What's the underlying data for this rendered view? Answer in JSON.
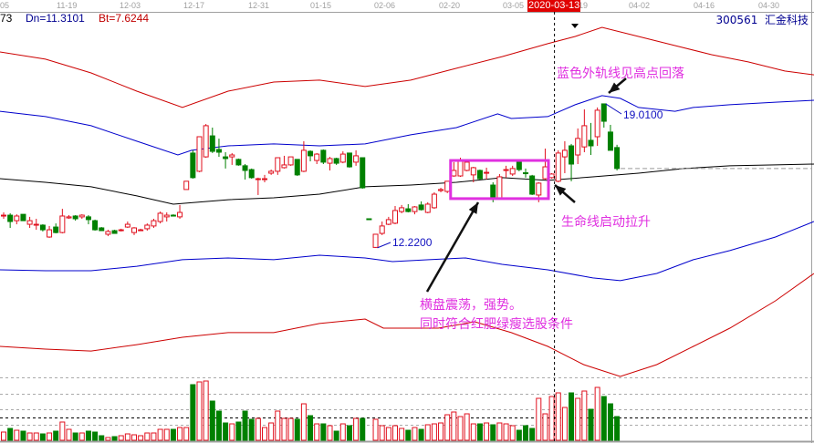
{
  "header": {
    "date_ticks": [
      "05",
      "11-19",
      "12-03",
      "12-17",
      "12-31",
      "01-15",
      "02-06",
      "02-20",
      "03-05",
      "19",
      "04-02",
      "04-16",
      "04-30"
    ],
    "cursor_date": "2020-03-13",
    "indicator_prefix": "73",
    "dn_label": "Dn=11.3101",
    "bt_label": "Bt=7.6244",
    "stock_code": "300561",
    "stock_name": "汇金科技"
  },
  "annotations": {
    "blue_band_peak": "蓝色外轨线见高点回落",
    "life_line": "生命线启动拉升",
    "sideways_line1": "横盘震荡，强势。",
    "sideways_line2": "同时符合红肥绿瘦选股条件",
    "high_label": "19.0100",
    "low_label": "12.2200"
  },
  "colors": {
    "up": "#e0101e",
    "down": "#008000",
    "upper_outer": "#cc0000",
    "upper_band": "#0000cc",
    "middle": "#000000",
    "lower_band": "#0000cc",
    "lower_outer": "#cc0000",
    "annotation": "#e030e0",
    "highlight_box": "#e030e0"
  },
  "chart_data": {
    "type": "candlestick",
    "price_high": 19.01,
    "price_low": 12.22,
    "cursor_index": 84,
    "last_close": 15.96,
    "highlight_box": {
      "from_index": 68.5,
      "to_index": 83.5,
      "price_top": 16.34,
      "price_bottom": 14.54
    },
    "candles_ohlc": [
      [
        13.76,
        13.89,
        13.59,
        13.76
      ],
      [
        13.76,
        13.85,
        13.16,
        13.46
      ],
      [
        13.5,
        13.8,
        13.33,
        13.72
      ],
      [
        13.8,
        13.8,
        13.5,
        13.5
      ],
      [
        13.33,
        13.68,
        13.16,
        13.5
      ],
      [
        13.29,
        13.59,
        13.07,
        13.33
      ],
      [
        13.29,
        13.33,
        12.99,
        13.07
      ],
      [
        12.73,
        13.25,
        12.69,
        13.07
      ],
      [
        13.2,
        13.37,
        12.9,
        12.94
      ],
      [
        12.94,
        14.06,
        12.9,
        13.72
      ],
      [
        13.63,
        13.76,
        13.59,
        13.68
      ],
      [
        13.72,
        13.76,
        13.5,
        13.59
      ],
      [
        13.68,
        13.8,
        13.59,
        13.76
      ],
      [
        13.68,
        13.76,
        13.33,
        13.55
      ],
      [
        13.5,
        13.55,
        13.03,
        13.07
      ],
      [
        13.16,
        13.2,
        13.03,
        13.03
      ],
      [
        12.86,
        13.07,
        12.77,
        12.99
      ],
      [
        13.03,
        13.07,
        12.9,
        12.9
      ],
      [
        13.03,
        13.12,
        12.99,
        13.07
      ],
      [
        13.2,
        13.46,
        13.16,
        13.33
      ],
      [
        12.94,
        13.2,
        12.82,
        13.16
      ],
      [
        13.03,
        13.12,
        13.03,
        13.07
      ],
      [
        13.12,
        13.37,
        13.03,
        13.29
      ],
      [
        13.25,
        13.59,
        13.16,
        13.5
      ],
      [
        13.46,
        13.93,
        13.37,
        13.85
      ],
      [
        13.68,
        13.89,
        13.46,
        13.76
      ],
      [
        13.76,
        13.8,
        13.72,
        13.74
      ],
      [
        13.68,
        14.24,
        13.59,
        13.89
      ],
      [
        14.97,
        15.36,
        14.97,
        15.36
      ],
      [
        16.69,
        16.82,
        15.48,
        15.53
      ],
      [
        15.83,
        17.46,
        15.79,
        17.46
      ],
      [
        16.51,
        18.06,
        16.47,
        17.98
      ],
      [
        17.5,
        17.89,
        16.69,
        16.77
      ],
      [
        16.86,
        17.37,
        16.51,
        16.73
      ],
      [
        16.51,
        16.73,
        15.96,
        16.43
      ],
      [
        16.51,
        16.69,
        16.13,
        16.6
      ],
      [
        16.39,
        16.43,
        16.09,
        16.13
      ],
      [
        16.09,
        16.17,
        15.44,
        15.87
      ],
      [
        15.91,
        15.96,
        15.48,
        15.53
      ],
      [
        15.44,
        15.53,
        14.71,
        15.48
      ],
      [
        15.44,
        15.66,
        15.31,
        15.48
      ],
      [
        15.74,
        15.91,
        15.66,
        15.83
      ],
      [
        15.83,
        16.47,
        15.66,
        16.47
      ],
      [
        16.0,
        16.56,
        15.96,
        16.13
      ],
      [
        16.13,
        16.51,
        16.09,
        16.51
      ],
      [
        16.39,
        16.39,
        15.61,
        15.66
      ],
      [
        15.83,
        17.25,
        15.79,
        16.82
      ],
      [
        16.77,
        16.82,
        16.3,
        16.56
      ],
      [
        16.34,
        16.69,
        16.17,
        16.64
      ],
      [
        16.82,
        16.86,
        16.17,
        16.26
      ],
      [
        16.21,
        16.51,
        15.87,
        16.43
      ],
      [
        16.43,
        16.47,
        16.13,
        16.21
      ],
      [
        16.26,
        16.77,
        16.21,
        16.64
      ],
      [
        16.69,
        16.69,
        16.0,
        16.04
      ],
      [
        16.26,
        16.82,
        16.09,
        16.56
      ],
      [
        16.47,
        16.47,
        15.01,
        15.05
      ],
      [
        13.59,
        13.59,
        13.59,
        13.58
      ],
      [
        12.24,
        12.86,
        12.22,
        12.86
      ],
      [
        12.9,
        13.46,
        12.82,
        13.25
      ],
      [
        13.33,
        13.68,
        13.29,
        13.55
      ],
      [
        13.38,
        14.19,
        13.33,
        13.98
      ],
      [
        13.93,
        14.24,
        13.85,
        14.11
      ],
      [
        14.06,
        14.28,
        13.89,
        13.93
      ],
      [
        13.93,
        14.19,
        13.8,
        14.15
      ],
      [
        14.24,
        14.41,
        13.98,
        14.02
      ],
      [
        13.89,
        14.37,
        13.85,
        14.28
      ],
      [
        14.11,
        14.84,
        14.06,
        14.75
      ],
      [
        14.92,
        15.05,
        14.84,
        14.97
      ],
      [
        14.88,
        15.36,
        14.8,
        15.36
      ],
      [
        15.61,
        16.26,
        15.57,
        15.87
      ],
      [
        15.61,
        16.47,
        15.57,
        16.3
      ],
      [
        15.87,
        16.39,
        15.83,
        16.26
      ],
      [
        15.66,
        16.04,
        15.31,
        16.0
      ],
      [
        15.87,
        15.91,
        15.44,
        15.48
      ],
      [
        15.74,
        16.0,
        15.44,
        15.78
      ],
      [
        15.18,
        15.31,
        14.37,
        14.54
      ],
      [
        14.54,
        15.7,
        14.5,
        15.57
      ],
      [
        15.87,
        16.09,
        15.53,
        15.91
      ],
      [
        15.7,
        16.09,
        15.61,
        15.96
      ],
      [
        16.26,
        16.39,
        15.83,
        15.91
      ],
      [
        15.76,
        15.96,
        15.53,
        15.74
      ],
      [
        15.61,
        15.66,
        14.71,
        14.75
      ],
      [
        14.71,
        15.31,
        14.37,
        15.27
      ],
      [
        15.48,
        16.9,
        15.44,
        16.04
      ],
      [
        15.53,
        15.74,
        15.48,
        15.7
      ],
      [
        15.36,
        16.82,
        15.31,
        16.69
      ],
      [
        16.51,
        17.25,
        15.74,
        16.82
      ],
      [
        17.03,
        17.12,
        15.36,
        16.17
      ],
      [
        16.6,
        17.85,
        16.17,
        17.38
      ],
      [
        16.98,
        18.75,
        16.73,
        17.98
      ],
      [
        17.29,
        18.11,
        16.6,
        17.03
      ],
      [
        17.46,
        18.84,
        17.03,
        18.71
      ],
      [
        19.01,
        19.01,
        17.89,
        18.19
      ],
      [
        17.68,
        18.02,
        16.82,
        16.82
      ],
      [
        16.95,
        17.08,
        15.87,
        15.96
      ]
    ],
    "volume_relative": [
      9,
      13,
      11,
      10,
      8,
      8,
      7,
      8,
      10,
      20,
      12,
      8,
      8,
      10,
      9,
      5,
      3,
      4,
      5,
      7,
      6,
      5,
      8,
      8,
      12,
      12,
      12,
      14,
      14,
      61,
      64,
      65,
      43,
      32,
      19,
      18,
      20,
      32,
      23,
      24,
      14,
      19,
      32,
      24,
      24,
      23,
      40,
      27,
      18,
      18,
      16,
      10,
      18,
      16,
      24,
      24,
      0,
      23,
      16,
      14,
      16,
      13,
      11,
      14,
      12,
      17,
      18,
      19,
      28,
      31,
      26,
      29,
      18,
      18,
      19,
      17,
      19,
      18,
      16,
      11,
      16,
      13,
      46,
      29,
      48,
      52,
      36,
      52,
      46,
      54,
      34,
      58,
      48,
      40,
      26
    ],
    "band_lines": [
      {
        "key": "upper_outer",
        "points": [
          [
            -0.6,
            21.46
          ],
          [
            6.4,
            21.12
          ],
          [
            13.4,
            20.47
          ],
          [
            20.4,
            19.61
          ],
          [
            27.4,
            18.84
          ],
          [
            34.4,
            19.61
          ],
          [
            41.4,
            20.04
          ],
          [
            48.4,
            20.13
          ],
          [
            55.4,
            19.83
          ],
          [
            62.4,
            20.13
          ],
          [
            69.4,
            20.69
          ],
          [
            76.4,
            21.24
          ],
          [
            83.4,
            21.85
          ],
          [
            87.6,
            22.19
          ],
          [
            91.7,
            22.62
          ],
          [
            97.3,
            22.19
          ],
          [
            102.9,
            21.76
          ],
          [
            108.5,
            21.33
          ],
          [
            114.1,
            20.99
          ],
          [
            119.7,
            20.56
          ],
          [
            124.2,
            20.38
          ]
        ]
      },
      {
        "key": "upper_band",
        "points": [
          [
            -0.6,
            18.66
          ],
          [
            6.4,
            18.41
          ],
          [
            13.4,
            17.98
          ],
          [
            20.4,
            17.25
          ],
          [
            26.7,
            16.6
          ],
          [
            28.8,
            16.82
          ],
          [
            34.4,
            17.03
          ],
          [
            41.4,
            17.12
          ],
          [
            48.4,
            17.03
          ],
          [
            55.4,
            17.12
          ],
          [
            62.4,
            17.55
          ],
          [
            69.4,
            17.89
          ],
          [
            75.7,
            18.54
          ],
          [
            77.8,
            18.32
          ],
          [
            83.4,
            18.41
          ],
          [
            87.6,
            18.97
          ],
          [
            91.7,
            19.4
          ],
          [
            94.5,
            19.27
          ],
          [
            97.3,
            18.84
          ],
          [
            102.9,
            18.66
          ],
          [
            105.7,
            18.84
          ],
          [
            111.3,
            18.97
          ],
          [
            118.3,
            19.09
          ],
          [
            124.2,
            19.18
          ]
        ]
      },
      {
        "key": "middle",
        "points": [
          [
            -0.6,
            15.48
          ],
          [
            6.4,
            15.31
          ],
          [
            13.4,
            15.1
          ],
          [
            20.4,
            14.67
          ],
          [
            26.0,
            14.28
          ],
          [
            34.4,
            14.49
          ],
          [
            41.4,
            14.58
          ],
          [
            48.4,
            14.75
          ],
          [
            55.4,
            15.1
          ],
          [
            62.4,
            15.18
          ],
          [
            69.4,
            15.31
          ],
          [
            76.4,
            15.53
          ],
          [
            83.4,
            15.4
          ],
          [
            90.3,
            15.57
          ],
          [
            97.3,
            15.74
          ],
          [
            104.3,
            15.96
          ],
          [
            111.3,
            16.09
          ],
          [
            118.3,
            16.13
          ],
          [
            124.2,
            16.17
          ]
        ]
      },
      {
        "key": "lower_band",
        "points": [
          [
            -0.6,
            11.18
          ],
          [
            6.4,
            11.14
          ],
          [
            13.4,
            11.14
          ],
          [
            20.4,
            11.35
          ],
          [
            27.4,
            11.66
          ],
          [
            34.4,
            11.74
          ],
          [
            41.4,
            11.66
          ],
          [
            48.4,
            11.87
          ],
          [
            55.4,
            11.74
          ],
          [
            59.6,
            11.57
          ],
          [
            65.2,
            11.66
          ],
          [
            70.8,
            11.74
          ],
          [
            76.4,
            11.44
          ],
          [
            83.4,
            11.18
          ],
          [
            90.3,
            10.8
          ],
          [
            94.5,
            10.67
          ],
          [
            100.1,
            11.01
          ],
          [
            105.7,
            11.66
          ],
          [
            111.3,
            12.09
          ],
          [
            118.3,
            12.73
          ],
          [
            124.2,
            13.46
          ]
        ]
      },
      {
        "key": "lower_outer",
        "points": [
          [
            -0.6,
            7.57
          ],
          [
            6.4,
            7.44
          ],
          [
            13.4,
            7.35
          ],
          [
            20.4,
            7.65
          ],
          [
            27.4,
            8.0
          ],
          [
            34.4,
            8.22
          ],
          [
            41.4,
            8.22
          ],
          [
            48.4,
            8.65
          ],
          [
            55.4,
            8.86
          ],
          [
            58.2,
            8.43
          ],
          [
            66.6,
            8.43
          ],
          [
            72.2,
            8.73
          ],
          [
            77.8,
            8.22
          ],
          [
            83.4,
            7.57
          ],
          [
            88.9,
            6.71
          ],
          [
            94.5,
            6.15
          ],
          [
            100.1,
            6.71
          ],
          [
            105.7,
            7.57
          ],
          [
            111.3,
            8.43
          ],
          [
            118.3,
            9.72
          ],
          [
            124.2,
            11.01
          ]
        ]
      }
    ]
  }
}
